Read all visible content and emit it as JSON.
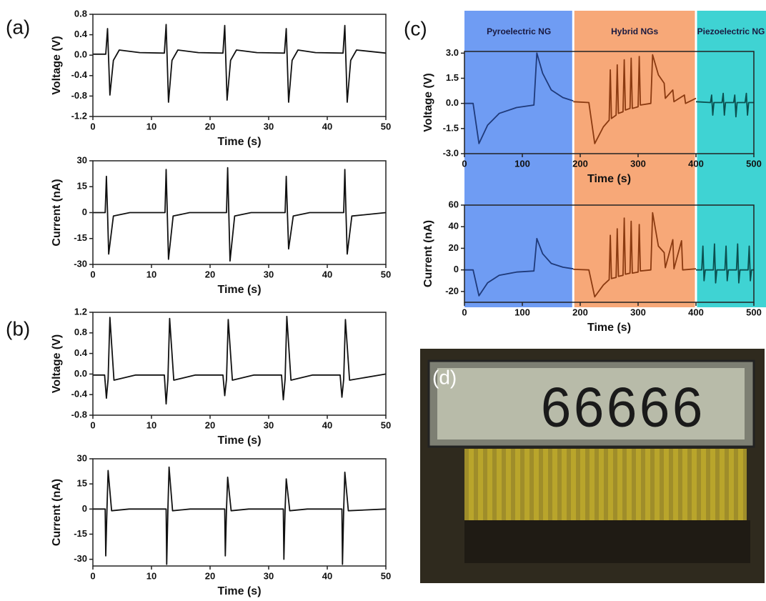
{
  "chart_data": [
    {
      "type": "line",
      "panel_label": "(a)",
      "xlabel": "Time (s)",
      "ylabel": "Voltage (V)",
      "xlim": [
        0,
        50
      ],
      "xticks": [
        0,
        10,
        20,
        30,
        40,
        50
      ],
      "ylim": [
        -1.2,
        0.8
      ],
      "yticks": [
        -1.2,
        -0.8,
        -0.4,
        {
          "value": 0,
          "label": "0.0"
        },
        0.4,
        0.8
      ],
      "series": [
        {
          "color": "#111111",
          "x": [
            0,
            2.2,
            2.5,
            2.9,
            3.5,
            4.5,
            8,
            12.2,
            12.5,
            12.9,
            13.5,
            14.5,
            18,
            22.2,
            22.5,
            22.9,
            23.5,
            24.5,
            28,
            32.7,
            33,
            33.4,
            34,
            35,
            38,
            42.7,
            43,
            43.4,
            44,
            45,
            50
          ],
          "values": [
            0.02,
            0.02,
            0.52,
            -0.78,
            -0.1,
            0.1,
            0.05,
            0.04,
            0.6,
            -0.92,
            -0.1,
            0.1,
            0.05,
            0.04,
            0.58,
            -0.88,
            -0.1,
            0.1,
            0.05,
            0.04,
            0.52,
            -0.92,
            -0.1,
            0.1,
            0.05,
            0.04,
            0.58,
            -0.92,
            -0.1,
            0.1,
            0.04
          ]
        }
      ]
    },
    {
      "type": "line",
      "xlabel": "Time (s)",
      "ylabel": "Current (nA)",
      "xlim": [
        0,
        50
      ],
      "xticks": [
        0,
        10,
        20,
        30,
        40,
        50
      ],
      "ylim": [
        -30,
        30
      ],
      "yticks": [
        -30,
        -15,
        0,
        15,
        30
      ],
      "series": [
        {
          "color": "#111111",
          "x": [
            0,
            2.1,
            2.3,
            2.5,
            2.7,
            3.5,
            6.3,
            12.3,
            12.5,
            12.7,
            12.9,
            13.7,
            16.5,
            22.8,
            23,
            23.2,
            23.4,
            24.2,
            27,
            32.8,
            33,
            33.2,
            33.4,
            34.2,
            37,
            42.8,
            43,
            43.2,
            43.4,
            44.2,
            50
          ],
          "values": [
            0,
            0,
            21,
            0,
            -24,
            -2,
            0,
            0,
            25,
            0,
            -27,
            -2,
            0,
            0,
            26,
            0,
            -28,
            -2,
            0,
            0,
            21,
            0,
            -21,
            -2,
            0,
            0,
            25,
            0,
            -24,
            -2,
            0
          ]
        }
      ]
    },
    {
      "type": "line",
      "panel_label": "(b)",
      "xlabel": "Time (s)",
      "ylabel": "Voltage (V)",
      "xlim": [
        0,
        50
      ],
      "xticks": [
        0,
        10,
        20,
        30,
        40,
        50
      ],
      "ylim": [
        -0.8,
        1.2
      ],
      "yticks": [
        -0.8,
        -0.4,
        {
          "value": 0,
          "label": "0.0"
        },
        0.4,
        0.8,
        1.2
      ],
      "series": [
        {
          "color": "#111111",
          "x": [
            0,
            2,
            2.3,
            2.6,
            2.9,
            3.6,
            7.3,
            12.2,
            12.5,
            12.8,
            13.1,
            13.8,
            17.5,
            22.2,
            22.5,
            22.8,
            23.1,
            23.8,
            27.5,
            32.2,
            32.5,
            32.8,
            33.1,
            33.8,
            37.5,
            42.2,
            42.5,
            42.8,
            43.1,
            43.8,
            50
          ],
          "values": [
            -0.02,
            -0.02,
            -0.47,
            -0.1,
            1.1,
            -0.12,
            -0.02,
            -0.02,
            -0.58,
            -0.1,
            1.08,
            -0.12,
            -0.02,
            -0.02,
            -0.42,
            -0.1,
            1.06,
            -0.12,
            -0.02,
            -0.02,
            -0.5,
            -0.1,
            1.12,
            -0.12,
            -0.02,
            -0.02,
            -0.45,
            -0.1,
            1.06,
            -0.12,
            0
          ]
        }
      ]
    },
    {
      "type": "line",
      "xlabel": "Time (s)",
      "ylabel": "Current (nA)",
      "xlim": [
        0,
        50
      ],
      "xticks": [
        0,
        10,
        20,
        30,
        40,
        50
      ],
      "ylim": [
        -34,
        30
      ],
      "yticks": [
        -30,
        -15,
        0,
        15,
        30
      ],
      "series": [
        {
          "color": "#111111",
          "x": [
            0,
            2.1,
            2.2,
            2.4,
            2.6,
            3.2,
            6.2,
            12.5,
            12.6,
            12.8,
            13,
            13.6,
            16.6,
            22.5,
            22.6,
            22.8,
            23,
            23.6,
            26.6,
            32.5,
            32.6,
            32.8,
            33,
            33.6,
            36.6,
            42.5,
            42.6,
            42.8,
            43,
            43.6,
            50
          ],
          "values": [
            0,
            0,
            -28,
            0,
            23,
            -1,
            0,
            0,
            -33,
            0,
            25,
            -1,
            0,
            0,
            -28,
            0,
            19,
            -1,
            0,
            0,
            -30,
            0,
            18,
            -1,
            0,
            0,
            -33,
            0,
            22,
            -1,
            0
          ]
        }
      ]
    },
    {
      "type": "line",
      "panel_label": "(c)",
      "xlabel": "Time (s)",
      "ylabel": "Voltage (V)",
      "xlim": [
        0,
        500
      ],
      "xticks": [
        0,
        100,
        200,
        300,
        400,
        500
      ],
      "ylim": [
        -3,
        3.1
      ],
      "yticks": [
        {
          "value": -3,
          "label": "-3.0"
        },
        -1.5,
        {
          "value": 0,
          "label": "0.0"
        },
        1.5,
        {
          "value": 3,
          "label": "3.0"
        }
      ],
      "regions": [
        {
          "label": "Pyroelectric NG",
          "start": 0,
          "end": 188,
          "color": "#6f9cf3"
        },
        {
          "label": "Hybrid NGs",
          "start": 188,
          "end": 400,
          "color": "#f7a878"
        },
        {
          "label": "Piezoelectric NG",
          "start": 400,
          "end": 521,
          "color": "#3fd3d3"
        }
      ],
      "series": [
        {
          "color": "#1f3a7a",
          "x": [
            0,
            15,
            25,
            40,
            60,
            90,
            120,
            125,
            135,
            150,
            170,
            188
          ],
          "values": [
            0,
            0,
            -2.4,
            -1.3,
            -0.6,
            -0.25,
            -0.1,
            3.0,
            1.8,
            0.8,
            0.35,
            0.15
          ]
        },
        {
          "color": "#8b3a10",
          "x": [
            188,
            215,
            225,
            240,
            250,
            252,
            254,
            262,
            264,
            266,
            274,
            276,
            278,
            286,
            288,
            290,
            300,
            302,
            304,
            322,
            325,
            335,
            345,
            347,
            360,
            362,
            380,
            382,
            400
          ],
          "values": [
            0.1,
            0.05,
            -2.4,
            -1.4,
            -1.0,
            2.0,
            -0.9,
            -0.7,
            2.3,
            -0.6,
            -0.5,
            2.6,
            -0.4,
            -0.3,
            2.7,
            -0.3,
            -0.2,
            2.8,
            -0.1,
            0,
            2.9,
            1.7,
            1.2,
            0.3,
            0.8,
            0.1,
            0.5,
            0,
            0.3
          ]
        },
        {
          "color": "#0b4f4f",
          "x": [
            400,
            425,
            427,
            429,
            431,
            445,
            447,
            449,
            451,
            465,
            467,
            469,
            471,
            485,
            487,
            489,
            491,
            500
          ],
          "values": [
            0.1,
            0.05,
            0.5,
            -0.7,
            0.05,
            0.05,
            0.6,
            -0.7,
            0.05,
            0.05,
            0.5,
            -0.8,
            0.05,
            0.05,
            0.6,
            -0.7,
            0.05,
            0.05
          ]
        }
      ]
    },
    {
      "type": "line",
      "xlabel": "Time (s)",
      "ylabel": "Current (nA)",
      "xlim": [
        0,
        500
      ],
      "xticks": [
        0,
        100,
        200,
        300,
        400,
        500
      ],
      "ylim": [
        -30,
        60
      ],
      "yticks": [
        -20,
        0,
        20,
        40,
        60
      ],
      "series": [
        {
          "color": "#1f3a7a",
          "x": [
            0,
            15,
            25,
            40,
            60,
            90,
            120,
            125,
            135,
            150,
            170,
            188
          ],
          "values": [
            0,
            0,
            -24,
            -12,
            -5,
            -2,
            -1,
            29,
            15,
            6,
            2.5,
            1
          ]
        },
        {
          "color": "#8b3a10",
          "x": [
            188,
            215,
            225,
            240,
            250,
            252,
            254,
            262,
            264,
            266,
            274,
            276,
            278,
            286,
            288,
            290,
            300,
            302,
            304,
            322,
            325,
            335,
            345,
            347,
            360,
            362,
            375,
            377,
            400
          ],
          "values": [
            0.5,
            0,
            -25,
            -14,
            -9,
            32,
            -8,
            -7,
            38,
            -6,
            -5,
            48,
            -4,
            -3,
            45,
            -3,
            -2,
            42,
            -1,
            0,
            53,
            22,
            16,
            2,
            28,
            1,
            27,
            0,
            1
          ]
        },
        {
          "color": "#0b4f4f",
          "x": [
            400,
            410,
            412,
            414,
            416,
            430,
            432,
            434,
            436,
            450,
            452,
            454,
            456,
            470,
            472,
            474,
            476,
            490,
            492,
            494,
            496,
            500
          ],
          "values": [
            0,
            0,
            22,
            -10,
            0,
            0,
            24,
            -12,
            0,
            0,
            22,
            -10,
            0,
            0,
            24,
            -12,
            0,
            0,
            22,
            -10,
            0,
            0
          ]
        }
      ]
    }
  ],
  "photo": {
    "panel_label": "(d)",
    "display": "66666"
  }
}
